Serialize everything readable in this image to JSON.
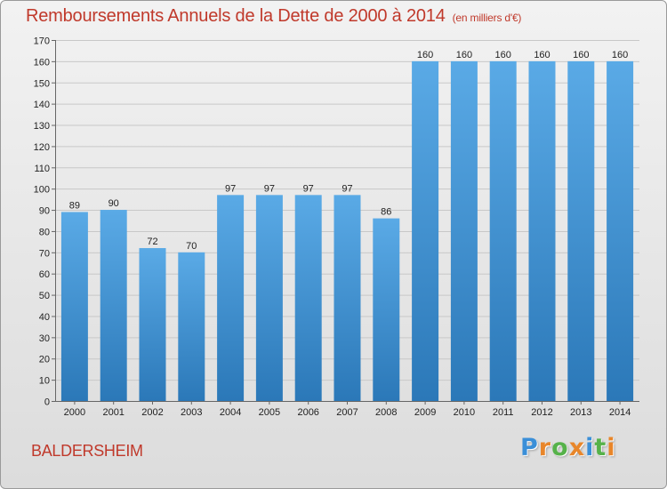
{
  "header": {
    "title": "Remboursements Annuels de la Dette de 2000 à 2014",
    "subtitle": "(en milliers d'€)"
  },
  "footer": {
    "commune": "BALDERSHEIM",
    "logo_text": "Proxiti"
  },
  "colors": {
    "title": "#c0392b",
    "bar_top": "#5aaae6",
    "bar_bottom": "#2b78b8",
    "grid": "#c8c8c8"
  },
  "chart_data": {
    "type": "bar",
    "title": "Remboursements Annuels de la Dette de 2000 à 2014",
    "subtitle": "(en milliers d'€)",
    "xlabel": "",
    "ylabel": "",
    "categories": [
      "2000",
      "2001",
      "2002",
      "2003",
      "2004",
      "2005",
      "2006",
      "2007",
      "2008",
      "2009",
      "2010",
      "2011",
      "2012",
      "2013",
      "2014"
    ],
    "values": [
      89,
      90,
      72,
      70,
      97,
      97,
      97,
      97,
      86,
      160,
      160,
      160,
      160,
      160,
      160
    ],
    "ylim": [
      0,
      170
    ],
    "yticks": [
      0,
      10,
      20,
      30,
      40,
      50,
      60,
      70,
      80,
      90,
      100,
      110,
      120,
      130,
      140,
      150,
      160,
      170
    ],
    "grid": true,
    "data_labels": true
  }
}
